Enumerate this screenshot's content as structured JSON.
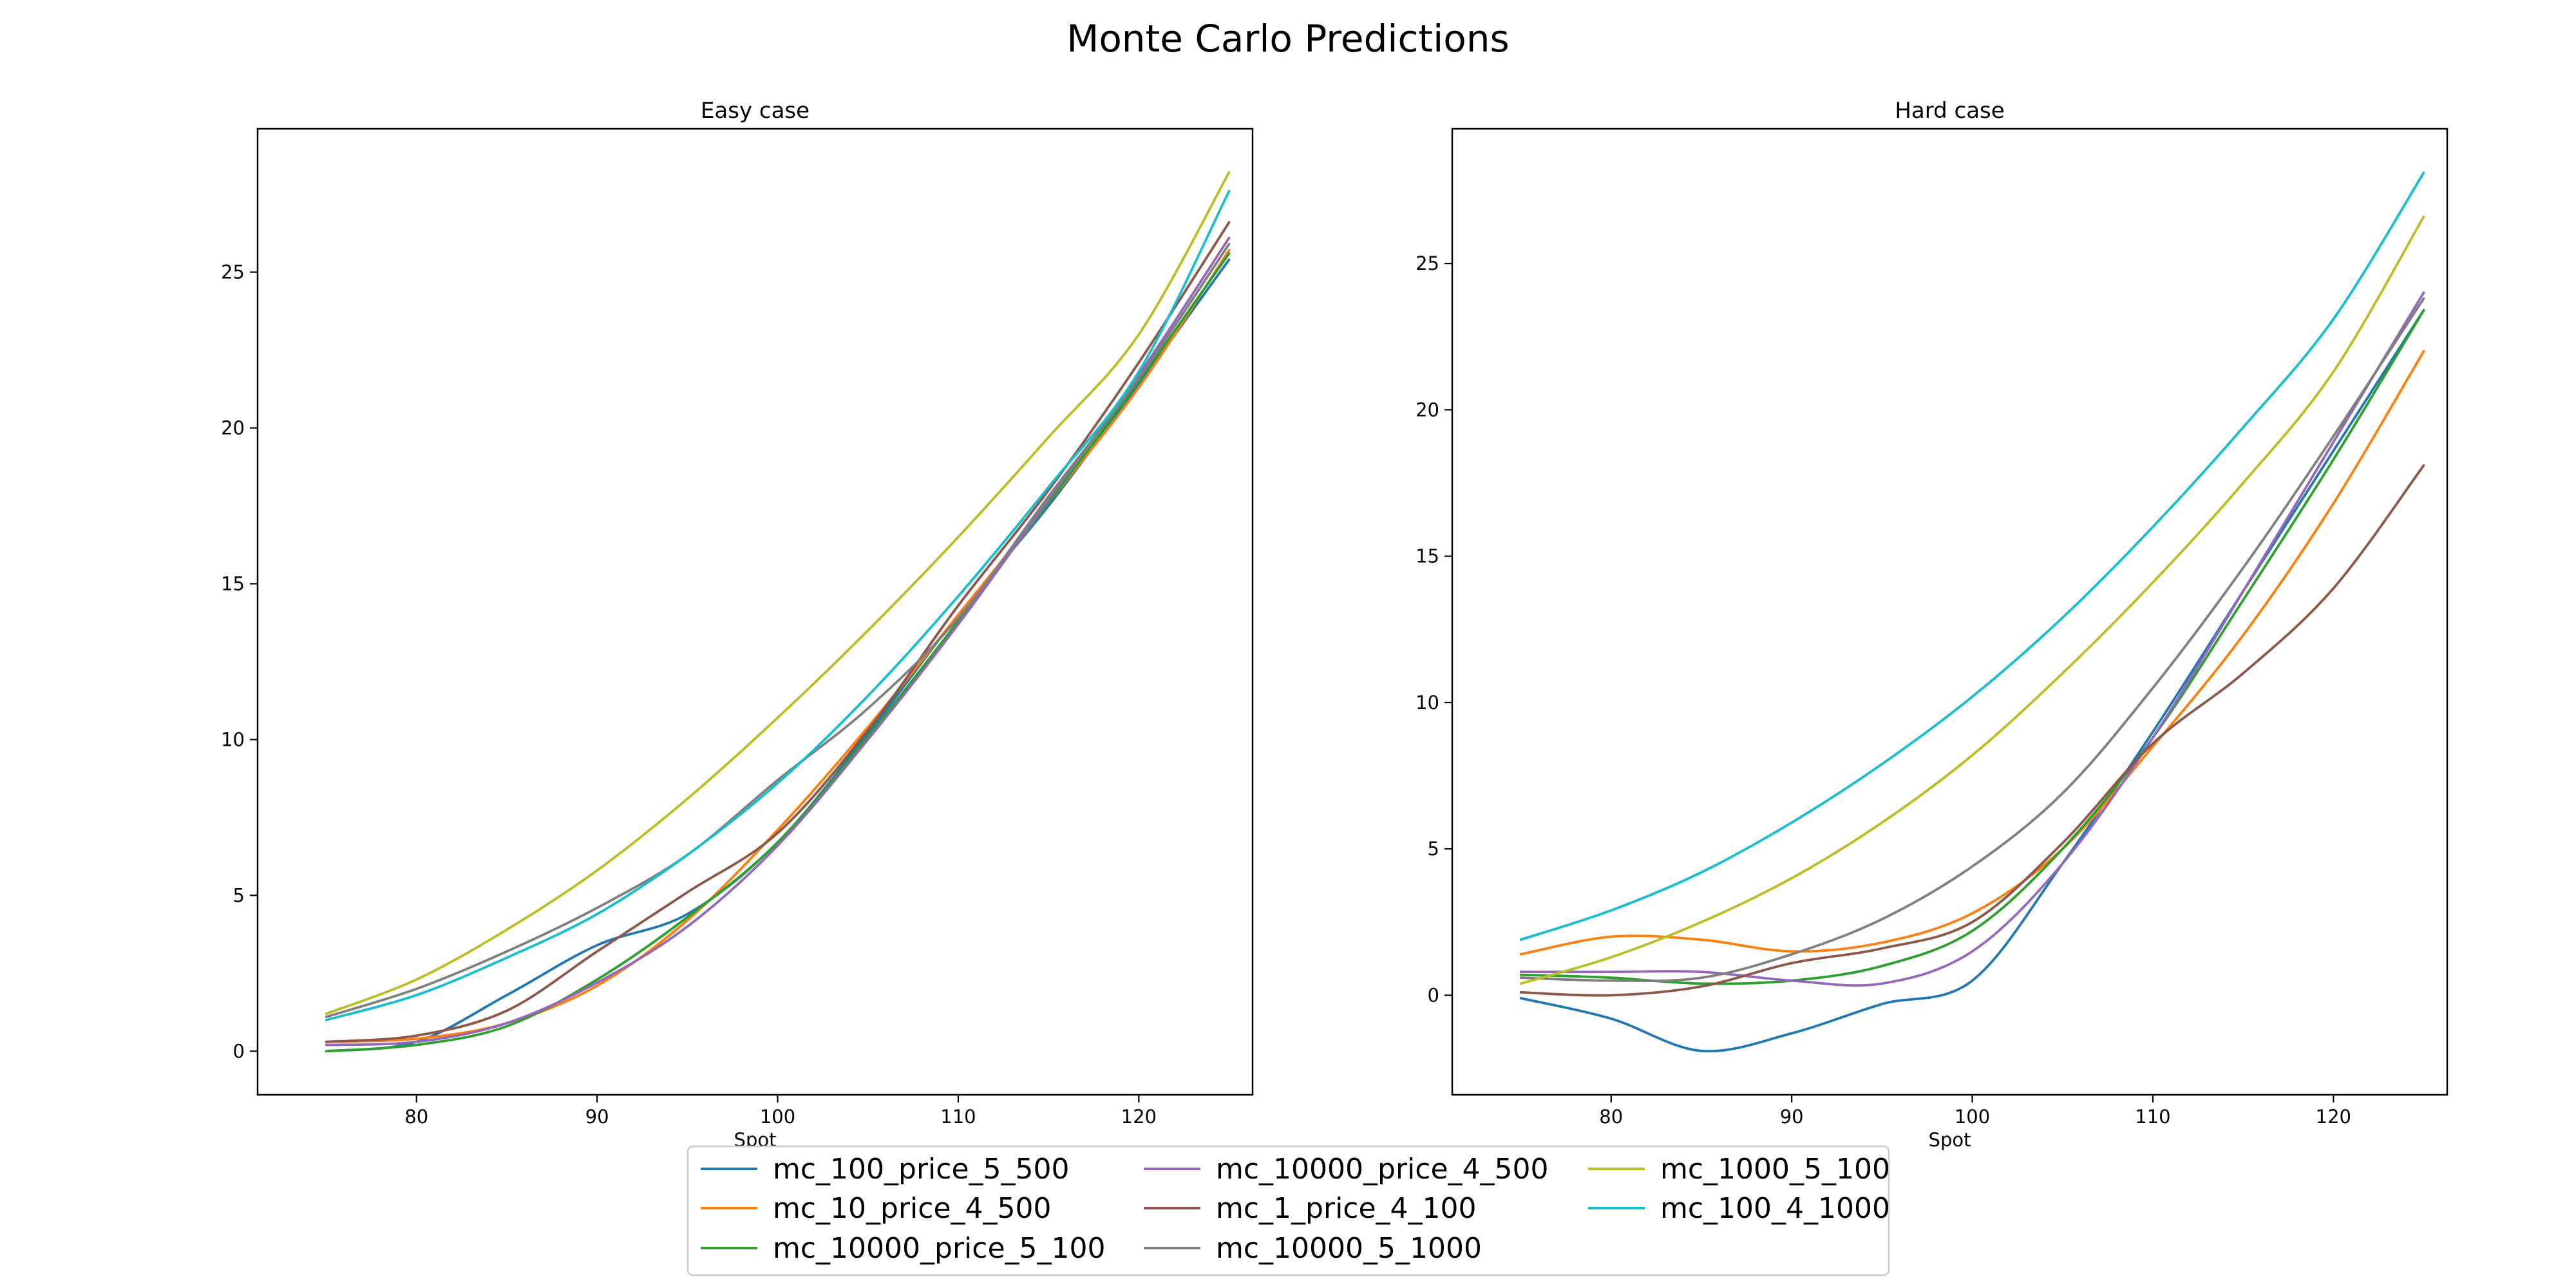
{
  "figure": {
    "title": "Monte Carlo Predictions"
  },
  "legend": {
    "placement": "bottom-center",
    "columns": 3
  },
  "series_colors": {
    "mc_100_price_5_500": "#1f77b4",
    "mc_10_price_4_500": "#ff7f0e",
    "mc_10000_price_5_100": "#2ca02c",
    "mc_10000_price_4_500": "#9467bd",
    "mc_1_price_4_100": "#8c564b",
    "mc_10000_5_1000": "#7f7f7f",
    "mc_1000_5_100": "#bcbd22",
    "mc_100_4_1000": "#17becf"
  },
  "chart_data": [
    {
      "type": "line",
      "title": "Easy case",
      "xlabel": "Spot",
      "ylabel": "",
      "xlim": [
        71.2,
        126.3
      ],
      "ylim": [
        -1.4,
        29.6
      ],
      "xticks": [
        80,
        90,
        100,
        110,
        120
      ],
      "yticks": [
        0,
        5,
        10,
        15,
        20,
        25
      ],
      "grid": false,
      "x": [
        75,
        80,
        85,
        90,
        95,
        100,
        105,
        110,
        115,
        120,
        125
      ],
      "series": [
        {
          "name": "mc_100_price_5_500",
          "values": [
            0.0,
            0.3,
            1.8,
            3.4,
            4.4,
            6.7,
            10.2,
            14.0,
            17.5,
            21.4,
            25.4
          ]
        },
        {
          "name": "mc_10_price_4_500",
          "values": [
            0.3,
            0.4,
            0.9,
            2.1,
            4.2,
            7.1,
            10.4,
            14.0,
            17.6,
            21.3,
            25.7
          ]
        },
        {
          "name": "mc_10000_price_5_100",
          "values": [
            0.0,
            0.2,
            0.8,
            2.3,
            4.3,
            6.7,
            10.1,
            13.8,
            17.6,
            21.5,
            25.6
          ]
        },
        {
          "name": "mc_10000_price_4_500",
          "values": [
            0.2,
            0.3,
            0.9,
            2.2,
            4.0,
            6.6,
            10.0,
            13.7,
            17.7,
            21.7,
            26.1
          ]
        },
        {
          "name": "mc_1_price_4_100",
          "values": [
            0.3,
            0.5,
            1.3,
            3.2,
            5.1,
            7.0,
            10.3,
            14.3,
            18.0,
            22.1,
            26.6
          ]
        },
        {
          "name": "mc_10000_5_1000",
          "values": [
            1.1,
            2.0,
            3.2,
            4.6,
            6.3,
            8.7,
            11.0,
            13.9,
            17.8,
            21.6,
            25.9
          ]
        },
        {
          "name": "mc_1000_5_100",
          "values": [
            1.2,
            2.3,
            3.9,
            5.8,
            8.1,
            10.7,
            13.5,
            16.5,
            19.7,
            23.0,
            28.2
          ]
        },
        {
          "name": "mc_100_4_1000",
          "values": [
            1.0,
            1.8,
            3.0,
            4.4,
            6.3,
            8.6,
            11.4,
            14.6,
            18.1,
            21.8,
            27.6
          ]
        }
      ]
    },
    {
      "type": "line",
      "title": "Hard case",
      "xlabel": "Spot",
      "ylabel": "",
      "xlim": [
        71.2,
        126.3
      ],
      "ylim": [
        -3.4,
        29.6
      ],
      "xticks": [
        80,
        90,
        100,
        110,
        120
      ],
      "yticks": [
        0,
        5,
        10,
        15,
        20,
        25
      ],
      "grid": false,
      "x": [
        75,
        80,
        85,
        90,
        95,
        100,
        105,
        110,
        115,
        120,
        125
      ],
      "series": [
        {
          "name": "mc_100_price_5_500",
          "values": [
            -0.1,
            -0.8,
            -1.9,
            -1.3,
            -0.3,
            0.5,
            4.5,
            9.0,
            13.8,
            18.6,
            23.4
          ]
        },
        {
          "name": "mc_10_price_4_500",
          "values": [
            1.4,
            2.0,
            1.9,
            1.5,
            1.8,
            2.8,
            5.0,
            8.5,
            12.3,
            16.8,
            22.0
          ]
        },
        {
          "name": "mc_10000_price_5_100",
          "values": [
            0.7,
            0.6,
            0.4,
            0.5,
            1.0,
            2.2,
            5.0,
            8.8,
            13.5,
            18.3,
            23.4
          ]
        },
        {
          "name": "mc_10000_price_4_500",
          "values": [
            0.8,
            0.8,
            0.8,
            0.5,
            0.4,
            1.5,
            4.5,
            8.8,
            13.8,
            18.9,
            24.0
          ]
        },
        {
          "name": "mc_1_price_4_100",
          "values": [
            0.1,
            0.0,
            0.3,
            1.1,
            1.6,
            2.5,
            5.2,
            8.6,
            11.0,
            13.9,
            18.1
          ]
        },
        {
          "name": "mc_10000_5_1000",
          "values": [
            0.6,
            0.5,
            0.6,
            1.4,
            2.6,
            4.4,
            6.9,
            10.5,
            14.6,
            19.1,
            23.8
          ]
        },
        {
          "name": "mc_1000_5_100",
          "values": [
            0.4,
            1.3,
            2.5,
            4.0,
            5.9,
            8.2,
            11.0,
            14.1,
            17.5,
            21.3,
            26.6
          ]
        },
        {
          "name": "mc_100_4_1000",
          "values": [
            1.9,
            2.9,
            4.2,
            5.9,
            7.9,
            10.2,
            12.9,
            16.0,
            19.4,
            23.1,
            28.1
          ]
        }
      ]
    }
  ]
}
